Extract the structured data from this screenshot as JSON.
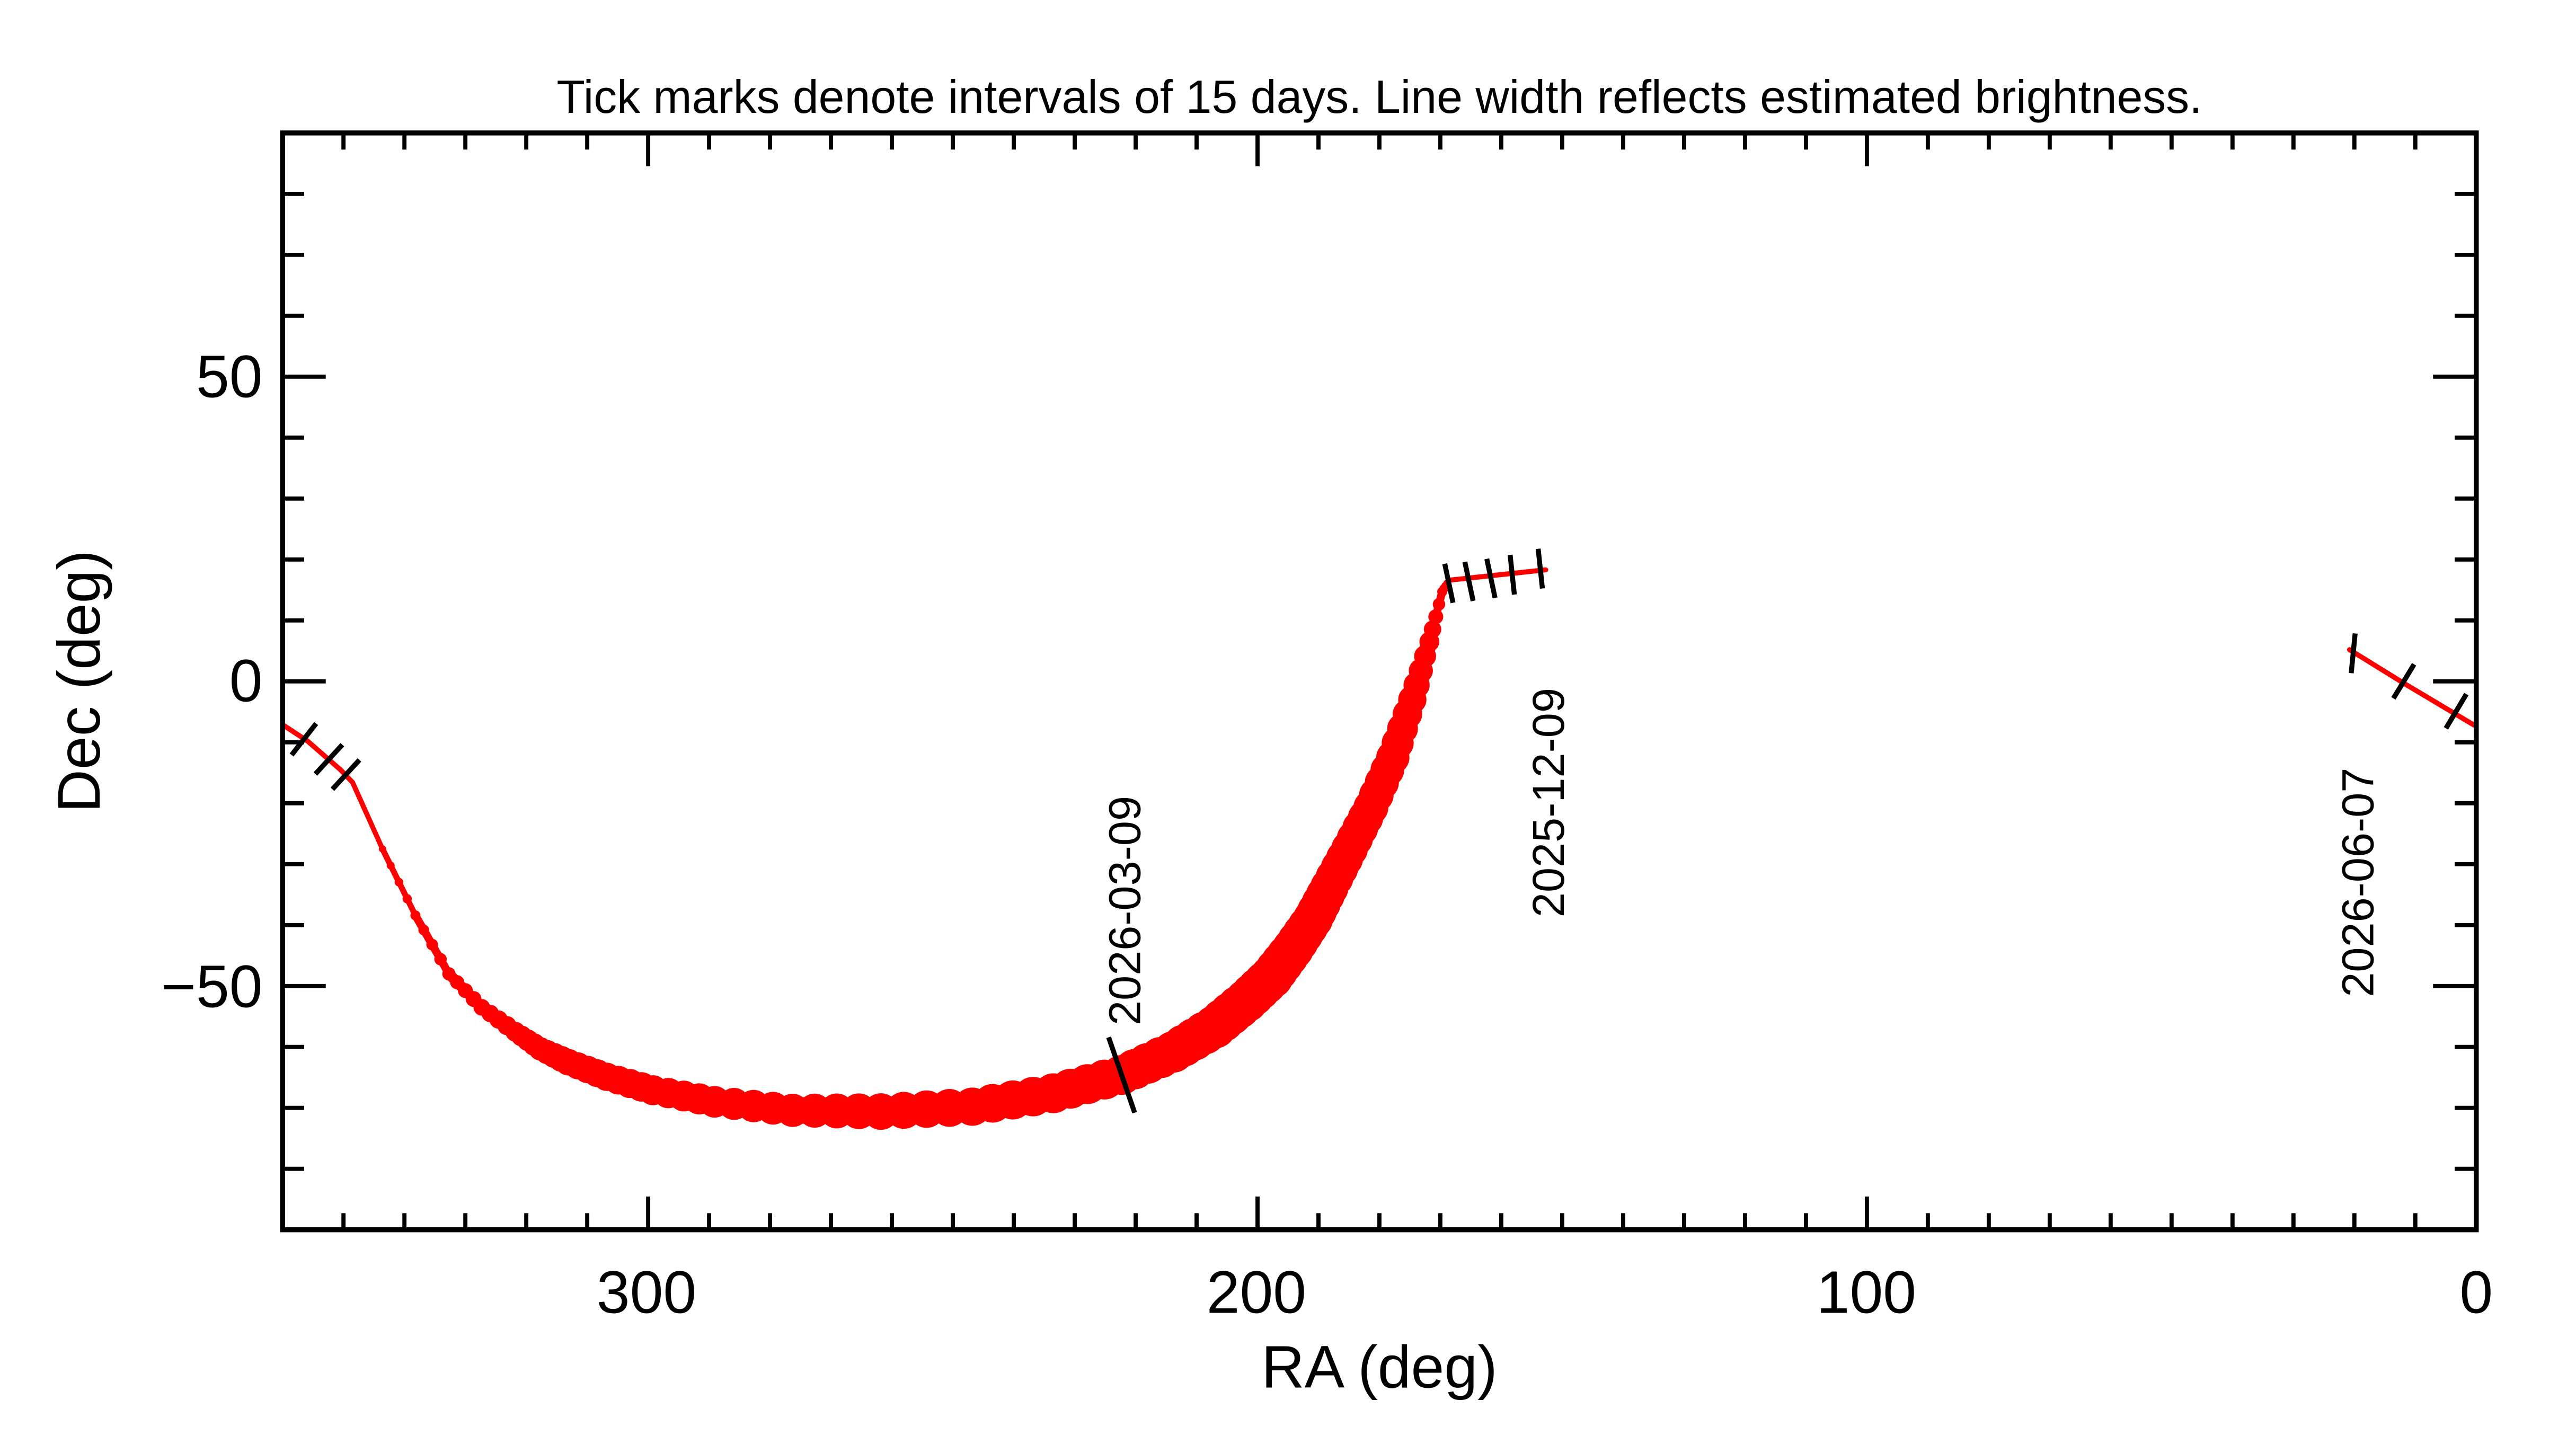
{
  "chart_data": {
    "type": "line",
    "title": "Tick marks denote intervals of 15 days.  Line width reflects estimated brightness.",
    "xlabel": "RA (deg)",
    "ylabel": "Dec (deg)",
    "xlim": [
      360,
      0
    ],
    "ylim": [
      -90,
      90
    ],
    "x_ticks": [
      300,
      200,
      100,
      0
    ],
    "y_ticks": [
      50,
      0,
      -50
    ],
    "x_tick_labels": [
      "300",
      "200",
      "100",
      "0"
    ],
    "y_tick_labels": [
      "50",
      "0",
      "−50"
    ],
    "x_minor_step": 10,
    "y_minor_step": 10,
    "grid": false,
    "line_color": "#ff0000",
    "tick_color": "#000000",
    "track_segments": [
      {
        "points": [
          {
            "ra": 360.0,
            "dec": -7.1,
            "width": 1
          },
          {
            "ra": 355.9,
            "dec": -9.8,
            "width": 1
          },
          {
            "ra": 350.5,
            "dec": -14.5,
            "width": 1.2
          },
          {
            "ra": 348.5,
            "dec": -16.6,
            "width": 1.5
          },
          {
            "ra": 343.6,
            "dec": -27.5,
            "width": 2.2
          },
          {
            "ra": 338.2,
            "dec": -38.4,
            "width": 3
          },
          {
            "ra": 332.7,
            "dec": -48.0,
            "width": 4
          },
          {
            "ra": 327.3,
            "dec": -53.5,
            "width": 5
          },
          {
            "ra": 321.8,
            "dec": -57.5,
            "width": 6
          },
          {
            "ra": 317.7,
            "dec": -60.3,
            "width": 7
          },
          {
            "ra": 313.1,
            "dec": -62.5,
            "width": 8
          },
          {
            "ra": 306.8,
            "dec": -64.9,
            "width": 8.5
          },
          {
            "ra": 299.2,
            "dec": -67.1,
            "width": 9
          },
          {
            "ra": 289.1,
            "dec": -69.0,
            "width": 9.5
          },
          {
            "ra": 276.3,
            "dec": -70.4,
            "width": 10
          },
          {
            "ra": 261.8,
            "dec": -70.6,
            "width": 11
          },
          {
            "ra": 246.8,
            "dec": -69.8,
            "width": 11.5
          },
          {
            "ra": 233.5,
            "dec": -67.6,
            "width": 12
          },
          {
            "ra": 222.3,
            "dec": -64.6,
            "width": 12
          },
          {
            "ra": 213.8,
            "dec": -60.8,
            "width": 12.5
          },
          {
            "ra": 207.0,
            "dec": -56.7,
            "width": 13
          },
          {
            "ra": 201.8,
            "dec": -52.4,
            "width": 13
          },
          {
            "ra": 197.7,
            "dec": -48.5,
            "width": 13
          },
          {
            "ra": 194.2,
            "dec": -43.9,
            "width": 12.5
          },
          {
            "ra": 190.9,
            "dec": -39.0,
            "width": 12
          },
          {
            "ra": 188.2,
            "dec": -33.8,
            "width": 11.5
          },
          {
            "ra": 184.9,
            "dec": -27.5,
            "width": 11
          },
          {
            "ra": 181.4,
            "dec": -20.7,
            "width": 10.5
          },
          {
            "ra": 177.8,
            "dec": -12.5,
            "width": 10
          },
          {
            "ra": 174.6,
            "dec": -3.0,
            "width": 8.5
          },
          {
            "ra": 171.8,
            "dec": 6.5,
            "width": 6
          },
          {
            "ra": 169.7,
            "dec": 14.7,
            "width": 3
          },
          {
            "ra": 168.6,
            "dec": 16.6,
            "width": 2
          },
          {
            "ra": 152.7,
            "dec": 18.3,
            "width": 1.5
          }
        ]
      },
      {
        "points": [
          {
            "ra": 20.8,
            "dec": 5.2,
            "width": 1.2
          },
          {
            "ra": 11.9,
            "dec": -0.3,
            "width": 1.2
          },
          {
            "ra": 0.0,
            "dec": -7.4,
            "width": 1.2
          }
        ]
      }
    ],
    "interval_ticks": [
      {
        "ra": 356.5,
        "dec": -9.5
      },
      {
        "ra": 352.4,
        "dec": -12.8
      },
      {
        "ra": 349.6,
        "dec": -15.3
      },
      {
        "ra": 168.6,
        "dec": 16.1
      },
      {
        "ra": 165.3,
        "dec": 16.4
      },
      {
        "ra": 161.7,
        "dec": 16.9
      },
      {
        "ra": 158.2,
        "dec": 17.5
      },
      {
        "ra": 153.6,
        "dec": 18.5
      },
      {
        "ra": 20.2,
        "dec": 4.6
      },
      {
        "ra": 11.9,
        "dec": 0.0
      },
      {
        "ra": 3.3,
        "dec": -4.9
      }
    ],
    "date_marks": [
      {
        "label": "2026-03-09",
        "ra": 222.3,
        "dec": -64.6,
        "long_tick": true
      },
      {
        "label": "2025-12-09",
        "ra": 152.7,
        "dec": 18.3,
        "long_tick": false
      },
      {
        "label": "2026-06-07",
        "ra": 20.8,
        "dec": 5.2,
        "long_tick": false
      }
    ]
  }
}
